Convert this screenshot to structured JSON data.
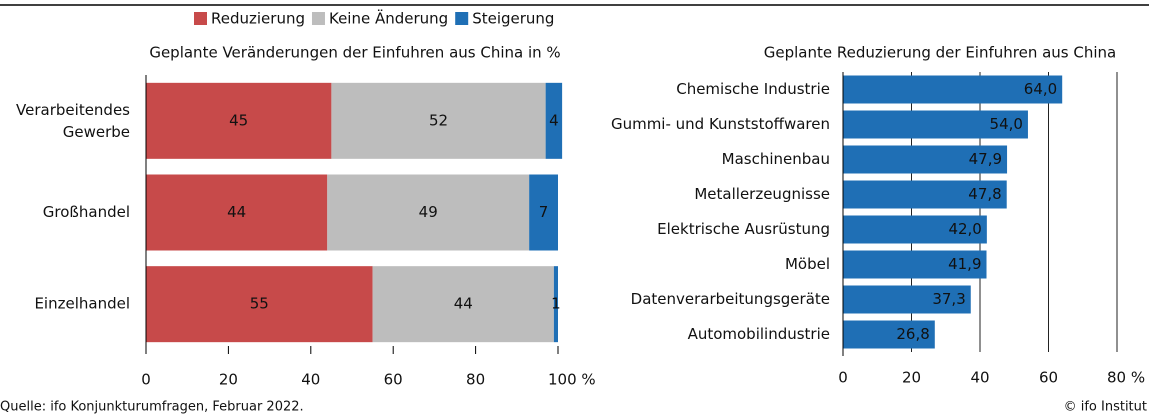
{
  "legend_position": "top",
  "chart_data": [
    {
      "type": "stacked-bar",
      "orientation": "horizontal",
      "title": "Geplante Veränderungen der Einfuhren aus China in %",
      "categories": [
        "Verarbeitendes Gewerbe",
        "Großhandel",
        "Einzelhandel"
      ],
      "series": [
        {
          "name": "Reduzierung",
          "color": "#c74a4a",
          "values": [
            45,
            44,
            55
          ]
        },
        {
          "name": "Keine Änderung",
          "color": "#bdbdbd",
          "values": [
            52,
            49,
            44
          ]
        },
        {
          "name": "Steigerung",
          "color": "#1f6fb5",
          "values": [
            4,
            7,
            1
          ]
        }
      ],
      "xlim": [
        0,
        100
      ],
      "xticks": [
        0,
        20,
        40,
        60,
        80,
        {
          "value": 100,
          "label": "100 %"
        }
      ],
      "grid": false
    },
    {
      "type": "bar",
      "orientation": "horizontal",
      "title": "Geplante Reduzierung der Einfuhren aus China",
      "categories": [
        "Chemische Industrie",
        "Gummi- und Kunststoffwaren",
        "Maschinenbau",
        "Metallerzeugnisse",
        "Elektrische Ausrüstung",
        "Möbel",
        "Datenverarbeitungsgeräte",
        "Automobilindustrie"
      ],
      "values": [
        64.0,
        54.0,
        47.9,
        47.8,
        42.0,
        41.9,
        37.3,
        26.8
      ],
      "value_labels": [
        "64,0",
        "54,0",
        "47,9",
        "47,8",
        "42,0",
        "41,9",
        "37,3",
        "26,8"
      ],
      "color": "#1f6fb5",
      "xlim": [
        0,
        80
      ],
      "xticks": [
        0,
        20,
        40,
        60,
        {
          "value": 80,
          "label": "80 %"
        }
      ],
      "grid": true
    }
  ],
  "source": "Quelle: ifo Konjunkturumfragen, Februar 2022.",
  "credit": "© ifo Institut"
}
